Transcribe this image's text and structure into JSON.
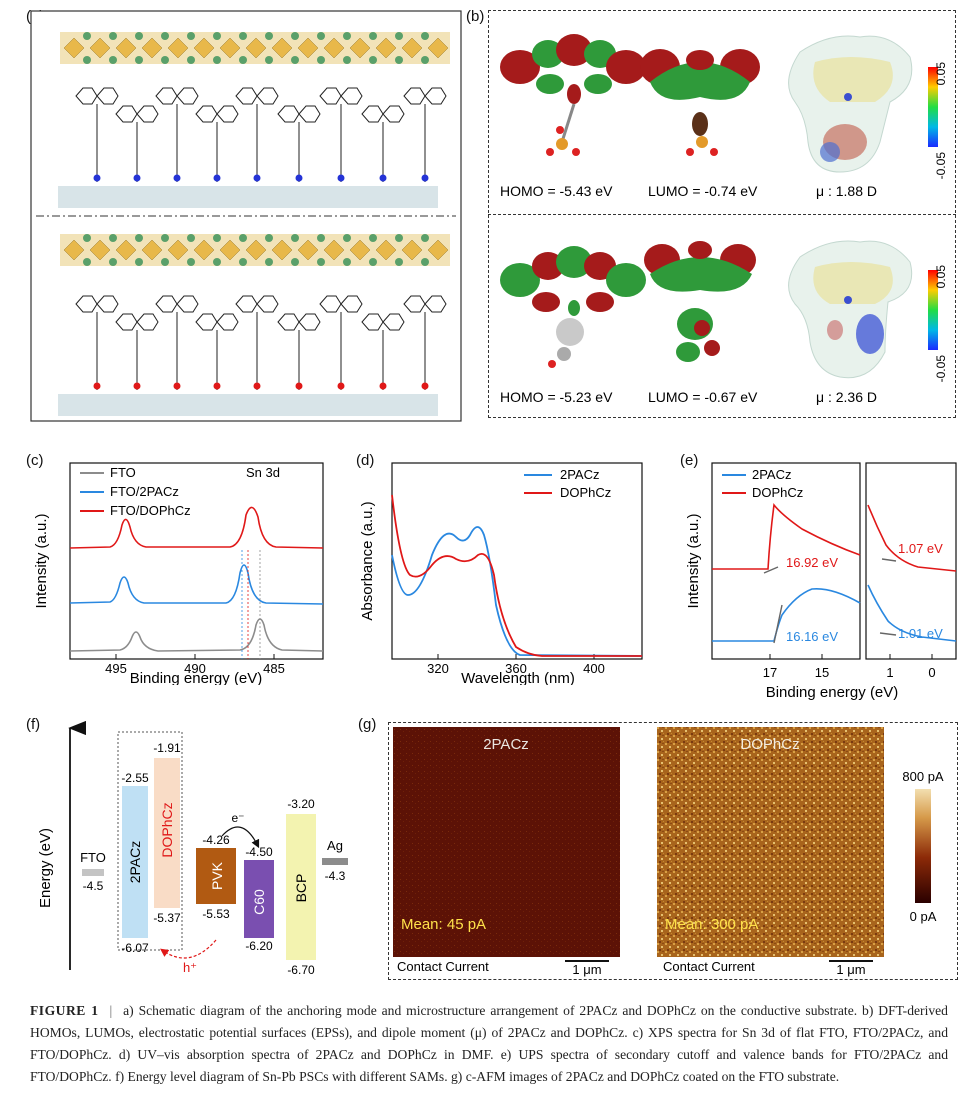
{
  "panels": {
    "a": "(a)",
    "b": "(b)",
    "c": "(c)",
    "d": "(d)",
    "e": "(e)",
    "f": "(f)",
    "g": "(g)"
  },
  "panel_b": {
    "top": {
      "homo": "HOMO = -5.43 eV",
      "lumo": "LUMO = -0.74 eV",
      "dipole": "μ : 1.88 D"
    },
    "bottom": {
      "homo": "HOMO = -5.23 eV",
      "lumo": "LUMO = -0.67 eV",
      "dipole": "μ : 2.36 D"
    },
    "scale_max": "0.05",
    "scale_min": "-0.05"
  },
  "panel_c": {
    "ylabel": "Intensity (a.u.)",
    "xlabel": "Binding energy (eV)",
    "annotation": "Sn 3d",
    "legend": [
      "FTO",
      "FTO/2PACz",
      "FTO/DOPhCz"
    ],
    "xticks": [
      "495",
      "490",
      "485"
    ]
  },
  "panel_d": {
    "ylabel": "Absorbance (a.u.)",
    "xlabel": "Wavelength (nm)",
    "legend": [
      "2PACz",
      "DOPhCz"
    ],
    "xticks": [
      "320",
      "360",
      "400"
    ]
  },
  "panel_e": {
    "ylabel": "Intensity (a.u.)",
    "xlabel": "Binding energy (eV)",
    "legend": [
      "2PACz",
      "DOPhCz"
    ],
    "labels": [
      "16.92 eV",
      "16.16 eV",
      "1.07 eV",
      "1.01 eV"
    ],
    "xticks_left": [
      "17",
      "15"
    ],
    "xticks_right": [
      "1",
      "0"
    ]
  },
  "panel_f": {
    "ylabel": "Energy (eV)",
    "fto": {
      "name": "FTO",
      "value": "-4.5"
    },
    "ag": {
      "name": "Ag",
      "value": "-4.3"
    },
    "bars": [
      {
        "name": "2PACz",
        "top": "-2.55",
        "bottom": "-6.07",
        "color": "#bfe0f4"
      },
      {
        "name": "DOPhCz",
        "top": "-1.91",
        "bottom": "-5.37",
        "color": "#f9dcc6"
      },
      {
        "name": "PVK",
        "top": "-4.26",
        "bottom": "-5.53",
        "color": "#b15a12"
      },
      {
        "name": "C60",
        "top": "-4.50",
        "bottom": "-6.20",
        "color": "#7a4fb0"
      },
      {
        "name": "BCP",
        "top": "-3.20",
        "bottom": "-6.70",
        "color": "#f3f3b0"
      }
    ],
    "electron": "e⁻",
    "hole": "h⁺"
  },
  "panel_g": {
    "left": {
      "title": "2PACz",
      "mean": "Mean: 45 pA",
      "footer": "Contact Current",
      "scale": "1 μm"
    },
    "right": {
      "title": "DOPhCz",
      "mean": "Mean: 300 pA",
      "footer": "Contact Current",
      "scale": "1 μm"
    },
    "colorbar_max": "800 pA",
    "colorbar_min": "0 pA"
  },
  "caption": {
    "label": "FIGURE 1",
    "sep": "|",
    "text": "a) Schematic diagram of the anchoring mode and microstructure arrangement of 2PACz and DOPhCz on the conductive substrate. b) DFT-derived HOMOs, LUMOs, electrostatic potential surfaces (EPSs), and dipole moment (μ) of 2PACz and DOPhCz. c) XPS spectra for Sn 3d of flat FTO, FTO/2PACz, and FTO/DOPhCz. d) UV–vis absorption spectra of 2PACz and DOPhCz in DMF. e) UPS spectra of secondary cutoff and valence bands for FTO/2PACz and FTO/DOPhCz. f) Energy level diagram of Sn-Pb PSCs with different SAMs. g) c-AFM images of 2PACz and DOPhCz coated on the FTO substrate."
  }
}
